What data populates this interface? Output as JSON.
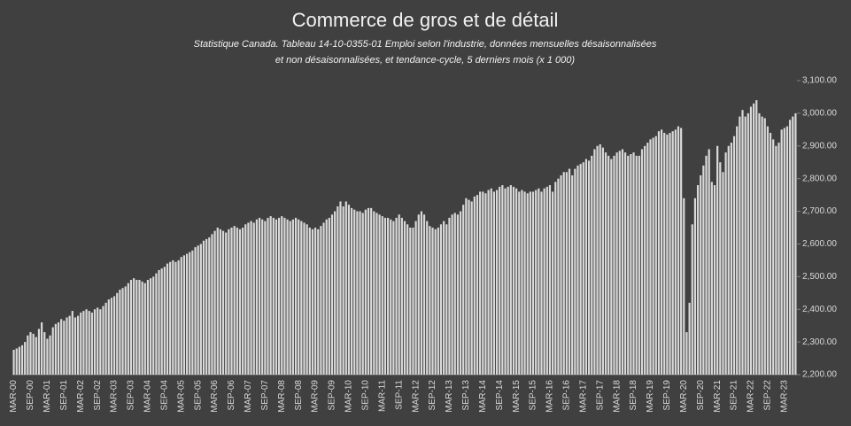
{
  "chart_data": {
    "type": "bar",
    "title": "Commerce de gros et de détail",
    "subtitle": [
      "Statistique Canada. Tableau 14-10-0355-01  Emploi selon l'industrie, données mensuelles désaisonnalisées",
      "et non désaisonnalisées, et tendance-cycle, 5 derniers mois (x 1 000)"
    ],
    "color": "#d9d9d9",
    "ylim": [
      2200,
      3100
    ],
    "yticks": [
      {
        "value": 2200,
        "label": "2,200.00"
      },
      {
        "value": 2300,
        "label": "2,300.00"
      },
      {
        "value": 2400,
        "label": "2,400.00"
      },
      {
        "value": 2500,
        "label": "2,500.00"
      },
      {
        "value": 2600,
        "label": "2,600.00"
      },
      {
        "value": 2700,
        "label": "2,700.00"
      },
      {
        "value": 2800,
        "label": "2,800.00"
      },
      {
        "value": 2900,
        "label": "2,900.00"
      },
      {
        "value": 3000,
        "label": "3,000.00"
      },
      {
        "value": 3100,
        "label": "3,100.00"
      }
    ],
    "categories": [
      "MAR-00",
      null,
      null,
      null,
      null,
      null,
      "SEP-00",
      null,
      null,
      null,
      null,
      null,
      "MAR-01",
      null,
      null,
      null,
      null,
      null,
      "SEP-01",
      null,
      null,
      null,
      null,
      null,
      "MAR-02",
      null,
      null,
      null,
      null,
      null,
      "SEP-02",
      null,
      null,
      null,
      null,
      null,
      "MAR-03",
      null,
      null,
      null,
      null,
      null,
      "SEP-03",
      null,
      null,
      null,
      null,
      null,
      "MAR-04",
      null,
      null,
      null,
      null,
      null,
      "SEP-04",
      null,
      null,
      null,
      null,
      null,
      "MAR-05",
      null,
      null,
      null,
      null,
      null,
      "SEP-05",
      null,
      null,
      null,
      null,
      null,
      "MAR-06",
      null,
      null,
      null,
      null,
      null,
      "SEP-06",
      null,
      null,
      null,
      null,
      null,
      "MAR-07",
      null,
      null,
      null,
      null,
      null,
      "SEP-07",
      null,
      null,
      null,
      null,
      null,
      "MAR-08",
      null,
      null,
      null,
      null,
      null,
      "SEP-08",
      null,
      null,
      null,
      null,
      null,
      "MAR-09",
      null,
      null,
      null,
      null,
      null,
      "SEP-09",
      null,
      null,
      null,
      null,
      null,
      "MAR-10",
      null,
      null,
      null,
      null,
      null,
      "SEP-10",
      null,
      null,
      null,
      null,
      null,
      "MAR-11",
      null,
      null,
      null,
      null,
      null,
      "SEP-11",
      null,
      null,
      null,
      null,
      null,
      "MAR-12",
      null,
      null,
      null,
      null,
      null,
      "SEP-12",
      null,
      null,
      null,
      null,
      null,
      "MAR-13",
      null,
      null,
      null,
      null,
      null,
      "SEP-13",
      null,
      null,
      null,
      null,
      null,
      "MAR-14",
      null,
      null,
      null,
      null,
      null,
      "SEP-14",
      null,
      null,
      null,
      null,
      null,
      "MAR-15",
      null,
      null,
      null,
      null,
      null,
      "SEP-15",
      null,
      null,
      null,
      null,
      null,
      "MAR-16",
      null,
      null,
      null,
      null,
      null,
      "SEP-16",
      null,
      null,
      null,
      null,
      null,
      "MAR-17",
      null,
      null,
      null,
      null,
      null,
      "SEP-17",
      null,
      null,
      null,
      null,
      null,
      "MAR-18",
      null,
      null,
      null,
      null,
      null,
      "SEP-18",
      null,
      null,
      null,
      null,
      null,
      "MAR-19",
      null,
      null,
      null,
      null,
      null,
      "SEP-19",
      null,
      null,
      null,
      null,
      null,
      "MAR-20",
      null,
      null,
      null,
      null,
      null,
      "SEP-20",
      null,
      null,
      null,
      null,
      null,
      "MAR-21",
      null,
      null,
      null,
      null,
      null,
      "SEP-21",
      null,
      null,
      null,
      null,
      null,
      "MAR-22",
      null,
      null,
      null,
      null,
      null,
      "SEP-22",
      null,
      null,
      null,
      null,
      null,
      "MAR-23",
      null,
      null,
      null,
      null
    ],
    "values": [
      2276,
      2280,
      2285,
      2290,
      2300,
      2320,
      2330,
      2325,
      2315,
      2340,
      2360,
      2330,
      2310,
      2320,
      2345,
      2355,
      2360,
      2370,
      2365,
      2375,
      2380,
      2395,
      2375,
      2380,
      2390,
      2395,
      2400,
      2395,
      2390,
      2400,
      2405,
      2400,
      2410,
      2420,
      2430,
      2435,
      2440,
      2450,
      2460,
      2465,
      2470,
      2480,
      2490,
      2495,
      2490,
      2490,
      2485,
      2480,
      2490,
      2495,
      2500,
      2510,
      2520,
      2525,
      2530,
      2540,
      2545,
      2550,
      2545,
      2550,
      2560,
      2565,
      2570,
      2575,
      2580,
      2590,
      2595,
      2600,
      2610,
      2615,
      2620,
      2630,
      2640,
      2650,
      2645,
      2640,
      2635,
      2645,
      2650,
      2655,
      2650,
      2645,
      2650,
      2660,
      2665,
      2670,
      2665,
      2675,
      2680,
      2675,
      2670,
      2680,
      2685,
      2680,
      2675,
      2680,
      2685,
      2680,
      2675,
      2670,
      2675,
      2680,
      2675,
      2670,
      2665,
      2660,
      2650,
      2645,
      2650,
      2645,
      2655,
      2665,
      2675,
      2680,
      2690,
      2700,
      2715,
      2730,
      2715,
      2730,
      2720,
      2710,
      2705,
      2700,
      2700,
      2695,
      2705,
      2710,
      2710,
      2700,
      2695,
      2690,
      2685,
      2680,
      2680,
      2675,
      2670,
      2680,
      2690,
      2680,
      2670,
      2660,
      2650,
      2650,
      2670,
      2690,
      2700,
      2690,
      2670,
      2655,
      2650,
      2645,
      2650,
      2660,
      2670,
      2660,
      2680,
      2690,
      2695,
      2690,
      2700,
      2720,
      2740,
      2735,
      2730,
      2745,
      2750,
      2760,
      2760,
      2755,
      2765,
      2770,
      2760,
      2765,
      2775,
      2780,
      2770,
      2775,
      2780,
      2775,
      2770,
      2760,
      2765,
      2760,
      2755,
      2760,
      2760,
      2765,
      2770,
      2760,
      2770,
      2775,
      2780,
      2760,
      2790,
      2800,
      2810,
      2820,
      2820,
      2830,
      2810,
      2830,
      2840,
      2845,
      2850,
      2860,
      2855,
      2870,
      2890,
      2900,
      2905,
      2895,
      2880,
      2870,
      2860,
      2870,
      2880,
      2885,
      2890,
      2880,
      2870,
      2875,
      2880,
      2870,
      2870,
      2890,
      2900,
      2910,
      2920,
      2925,
      2930,
      2945,
      2950,
      2940,
      2935,
      2940,
      2945,
      2950,
      2960,
      2955,
      2740,
      2330,
      2420,
      2660,
      2740,
      2780,
      2810,
      2840,
      2870,
      2890,
      2790,
      2780,
      2900,
      2850,
      2820,
      2880,
      2900,
      2910,
      2930,
      2960,
      2990,
      3010,
      2990,
      3000,
      3020,
      3030,
      3040,
      3000,
      2990,
      2985,
      2960,
      2940,
      2920,
      2900,
      2910,
      2950,
      2955,
      2960,
      2980,
      2990,
      3000
    ]
  }
}
